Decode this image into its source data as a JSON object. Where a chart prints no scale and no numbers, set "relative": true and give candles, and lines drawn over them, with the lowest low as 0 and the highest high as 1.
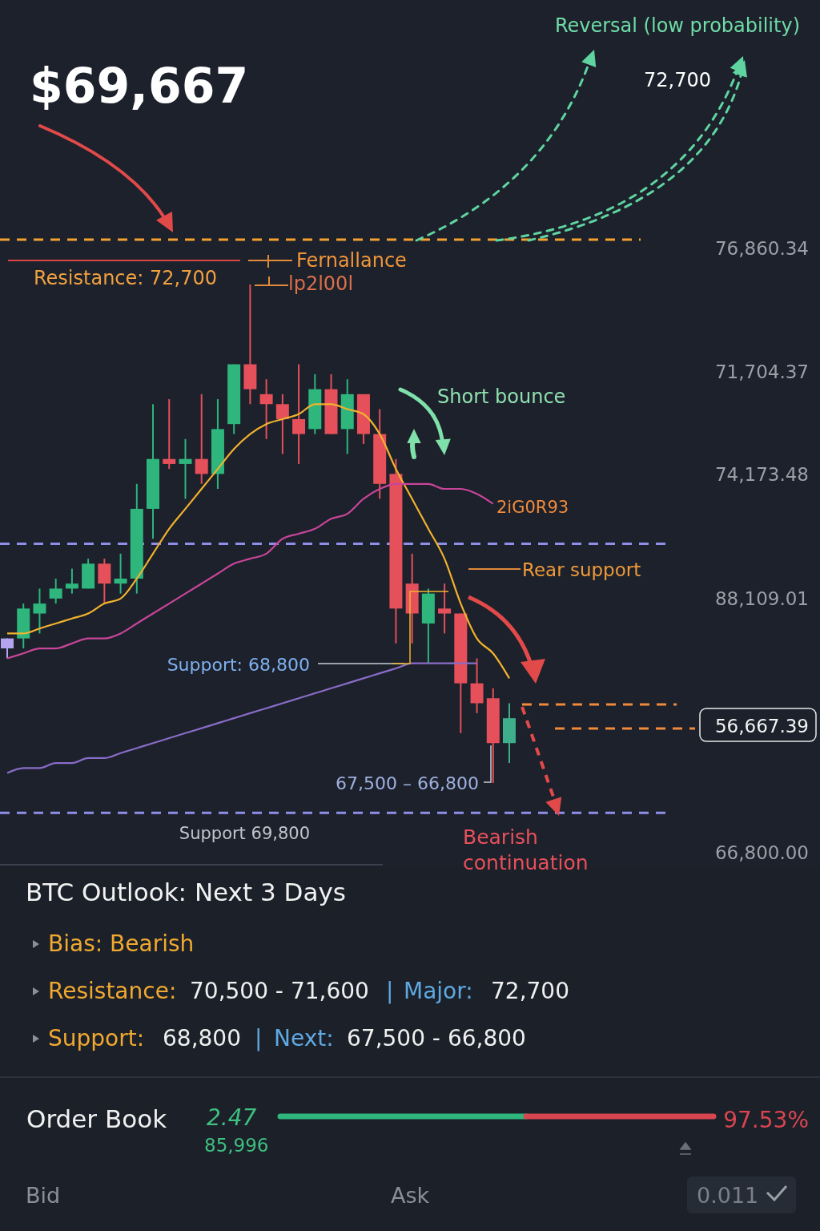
{
  "chart_data": [
    {
      "type": "candlestick",
      "title": "$69,667",
      "relative": true,
      "categories": [
        null,
        null,
        null,
        null,
        null,
        null,
        null,
        null,
        null,
        null,
        null,
        null,
        null,
        null,
        null,
        null,
        null,
        null,
        null,
        null,
        null,
        null,
        null,
        null,
        null,
        null,
        null,
        null,
        null,
        null,
        null,
        null
      ],
      "ohlc": [
        [
          0.27,
          0.29,
          0.25,
          0.29
        ],
        [
          0.29,
          0.36,
          0.27,
          0.35
        ],
        [
          0.34,
          0.39,
          0.3,
          0.36
        ],
        [
          0.37,
          0.41,
          0.36,
          0.39
        ],
        [
          0.39,
          0.43,
          0.38,
          0.4
        ],
        [
          0.39,
          0.45,
          0.39,
          0.44
        ],
        [
          0.44,
          0.45,
          0.36,
          0.4
        ],
        [
          0.4,
          0.46,
          0.38,
          0.41
        ],
        [
          0.41,
          0.6,
          0.38,
          0.55
        ],
        [
          0.55,
          0.76,
          0.49,
          0.65
        ],
        [
          0.65,
          0.77,
          0.63,
          0.64
        ],
        [
          0.64,
          0.69,
          0.57,
          0.65
        ],
        [
          0.65,
          0.78,
          0.6,
          0.62
        ],
        [
          0.62,
          0.77,
          0.59,
          0.71
        ],
        [
          0.72,
          0.84,
          0.7,
          0.84
        ],
        [
          0.84,
          1.0,
          0.76,
          0.79
        ],
        [
          0.78,
          0.81,
          0.69,
          0.76
        ],
        [
          0.76,
          0.78,
          0.66,
          0.73
        ],
        [
          0.73,
          0.84,
          0.64,
          0.7
        ],
        [
          0.71,
          0.82,
          0.7,
          0.79
        ],
        [
          0.79,
          0.82,
          0.7,
          0.7
        ],
        [
          0.71,
          0.81,
          0.66,
          0.78
        ],
        [
          0.78,
          0.78,
          0.68,
          0.7
        ],
        [
          0.7,
          0.75,
          0.57,
          0.6
        ],
        [
          0.62,
          0.65,
          0.28,
          0.35
        ],
        [
          0.4,
          0.46,
          0.28,
          0.34
        ],
        [
          0.32,
          0.39,
          0.24,
          0.38
        ],
        [
          0.35,
          0.4,
          0.3,
          0.34
        ],
        [
          0.34,
          0.34,
          0.1,
          0.2
        ],
        [
          0.2,
          0.25,
          0.14,
          0.16
        ],
        [
          0.17,
          0.19,
          0.0,
          0.08
        ],
        [
          0.08,
          0.16,
          0.04,
          0.13
        ]
      ],
      "colors": [
        "#b4a4f0",
        "#2eb67d",
        "#2eb67d",
        "#2eb67d",
        "#2eb67d",
        "#2eb67d",
        "#e5505a",
        "#2eb67d",
        "#2eb67d",
        "#2eb67d",
        "#e5505a",
        "#2eb67d",
        "#e5505a",
        "#2eb67d",
        "#2eb67d",
        "#e5505a",
        "#e5505a",
        "#e5505a",
        "#e5505a",
        "#2eb67d",
        "#e5505a",
        "#2eb67d",
        "#e5505a",
        "#e5505a",
        "#e5505a",
        "#e5505a",
        "#2eb67d",
        "#e5505a",
        "#e5505a",
        "#e5505a",
        "#e5505a",
        "#3fae8a"
      ],
      "series": [
        {
          "type": "line",
          "color": "#f2b22e",
          "values": [
            0.3,
            0.3,
            0.31,
            0.32,
            0.33,
            0.34,
            0.36,
            0.37,
            0.41,
            0.46,
            0.51,
            0.55,
            0.59,
            0.63,
            0.67,
            0.7,
            0.72,
            0.73,
            0.74,
            0.76,
            0.76,
            0.75,
            0.74,
            0.7,
            0.63,
            0.57,
            0.51,
            0.45,
            0.36,
            0.29,
            0.26,
            0.21
          ]
        },
        {
          "type": "line",
          "color": "#c8459a",
          "values": [
            0.25,
            0.26,
            0.27,
            0.27,
            0.28,
            0.29,
            0.29,
            0.3,
            0.32,
            0.34,
            0.36,
            0.38,
            0.4,
            0.42,
            0.44,
            0.45,
            0.46,
            0.49,
            0.5,
            0.51,
            0.53,
            0.54,
            0.57,
            0.59,
            0.6,
            0.6,
            0.6,
            0.59,
            0.59,
            0.58,
            0.56,
            null
          ]
        },
        {
          "type": "line",
          "color": "#8a6cc8",
          "values": [
            0.02,
            0.03,
            0.03,
            0.04,
            0.04,
            0.05,
            0.05,
            0.06,
            0.07,
            0.08,
            0.09,
            0.1,
            0.11,
            0.12,
            0.13,
            0.14,
            0.15,
            0.16,
            0.17,
            0.18,
            0.19,
            0.2,
            0.21,
            0.22,
            0.23,
            0.24,
            0.24,
            0.24,
            0.24,
            0.24,
            null,
            null
          ]
        }
      ],
      "ref_lines": [
        {
          "axis": "y",
          "value": 1.09,
          "color": "#f5a030",
          "line_style": "dashed"
        },
        {
          "axis": "y",
          "value": 0.48,
          "color": "#8d8fe8",
          "line_style": "dashed"
        },
        {
          "axis": "y",
          "value": -0.06,
          "color": "#8d8fe8",
          "line_style": "dashed"
        }
      ],
      "annotations": [
        "Reversal (low probability)",
        "72,700",
        "Fernallance",
        "lp2l00l",
        "Resistance: 72,700",
        "Short bounce",
        "2iG0R93",
        "Rear support",
        "Support: 68,800",
        "67,500 – 66,800",
        "Support 69,800",
        "Bearish continuation",
        "76,860.34",
        "71,704.37",
        "74,173.48",
        "88,109.01",
        "56,667.39",
        "66,800.00"
      ]
    },
    {
      "type": "other",
      "title": "BTC Outlook: Next 3 Days",
      "annotations": [
        "Bias: Bearish",
        "Resistance:",
        "70,500 - 71,600",
        "|",
        "Major:",
        "72,700",
        "Support:",
        "68,800",
        "|",
        "Next:",
        "67,500 - 66,800",
        "Order Book",
        "2.47",
        "85,996",
        "97.53%",
        "Bid",
        "Ask",
        "0.011"
      ]
    }
  ]
}
